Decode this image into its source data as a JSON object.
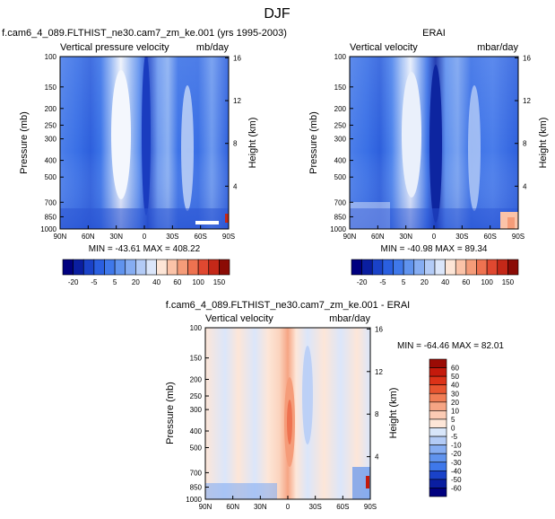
{
  "figure": {
    "title": "DJF"
  },
  "chart_data": [
    {
      "type": "heatmap",
      "id": "model",
      "title": "f.cam6_4_089.FLTHIST_ne30.cam7_zm_ke.001 (yrs 1995-2003)",
      "left_label": "Vertical pressure velocity",
      "right_label": "mb/day",
      "ylabel": "Pressure (mb)",
      "ylabel_right": "Height (km)",
      "x_ticks": [
        "90N",
        "60N",
        "30N",
        "0",
        "30S",
        "60S",
        "90S"
      ],
      "y_ticks": [
        "100",
        "150",
        "200",
        "250",
        "300",
        "400",
        "500",
        "700",
        "850",
        "1000"
      ],
      "y_ticks_right": [
        "16",
        "12",
        "8",
        "4"
      ],
      "stats": "MIN = -43.61  MAX = 408.22",
      "colorbar": {
        "labels": [
          "-20",
          "-5",
          "5",
          "20",
          "40",
          "60",
          "100",
          "150"
        ],
        "colors": [
          "#00007f",
          "#0a1ea0",
          "#1a42c8",
          "#2a5fe0",
          "#3f78ea",
          "#6093ee",
          "#86adf2",
          "#b3cbf6",
          "#dbe6fa",
          "#fde5d6",
          "#fbc3a8",
          "#f59c79",
          "#ee7250",
          "#e04830",
          "#c42818",
          "#8b0b05"
        ]
      }
    },
    {
      "type": "heatmap",
      "id": "obs",
      "title": "ERAI",
      "left_label": "Vertical velocity",
      "right_label": "mbar/day",
      "ylabel": "Pressure (mb)",
      "ylabel_right": "Height (km)",
      "x_ticks": [
        "90N",
        "60N",
        "30N",
        "0",
        "30S",
        "60S",
        "90S"
      ],
      "y_ticks": [
        "100",
        "150",
        "200",
        "250",
        "300",
        "400",
        "500",
        "700",
        "850",
        "1000"
      ],
      "y_ticks_right": [
        "16",
        "12",
        "8",
        "4"
      ],
      "stats": "MIN = -40.98  MAX = 89.34",
      "colorbar": {
        "labels": [
          "-20",
          "-5",
          "5",
          "20",
          "40",
          "60",
          "100",
          "150"
        ],
        "colors": [
          "#00007f",
          "#0a1ea0",
          "#1a42c8",
          "#2a5fe0",
          "#3f78ea",
          "#6093ee",
          "#86adf2",
          "#b3cbf6",
          "#dbe6fa",
          "#fde5d6",
          "#fbc3a8",
          "#f59c79",
          "#ee7250",
          "#e04830",
          "#c42818",
          "#8b0b05"
        ]
      }
    },
    {
      "type": "heatmap",
      "id": "diff",
      "title": "f.cam6_4_089.FLTHIST_ne30.cam7_zm_ke.001 - ERAI",
      "left_label": "Vertical velocity",
      "right_label": "mbar/day",
      "ylabel": "Pressure (mb)",
      "ylabel_right": "Height (km)",
      "x_ticks": [
        "90N",
        "60N",
        "30N",
        "0",
        "30S",
        "60S",
        "90S"
      ],
      "y_ticks": [
        "100",
        "150",
        "200",
        "250",
        "300",
        "400",
        "500",
        "700",
        "850",
        "1000"
      ],
      "y_ticks_right": [
        "16",
        "12",
        "8",
        "4"
      ],
      "stats": "MIN = -64.46  MAX = 82.01",
      "colorbar": {
        "labels": [
          "60",
          "50",
          "40",
          "30",
          "20",
          "10",
          "5",
          "0",
          "-5",
          "-10",
          "-20",
          "-30",
          "-40",
          "-50",
          "-60"
        ],
        "colors": [
          "#9b0b05",
          "#c41a0c",
          "#dc3218",
          "#e85530",
          "#f07d55",
          "#f6a584",
          "#fbcbb4",
          "#fde6d8",
          "#d8e6fa",
          "#b3cbf6",
          "#86adf2",
          "#6093ee",
          "#3f78ea",
          "#1a42c8",
          "#0a1ea0",
          "#00007f"
        ]
      }
    }
  ]
}
